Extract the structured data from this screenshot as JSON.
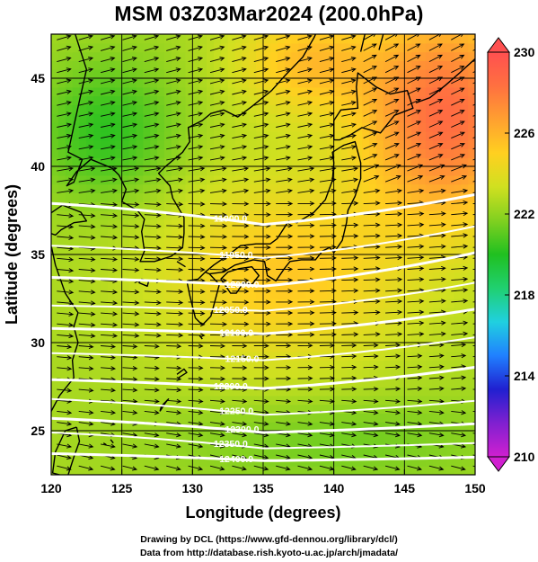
{
  "title": "MSM 03Z03Mar2024 (200.0hPa)",
  "credits": {
    "line1": "Drawing by DCL (https://www.gfd-dennou.org/library/dcl/)",
    "line2": "Data from http://database.rish.kyoto-u.ac.jp/arch/jmadata/"
  },
  "chart_data": {
    "type": "heatmap",
    "title": "MSM 03Z03Mar2024 (200.0hPa)",
    "xlabel": "Longitude (degrees)",
    "ylabel": "Latitude  (degrees)",
    "xlim": [
      120,
      150
    ],
    "ylim": [
      22.5,
      47.5
    ],
    "x_ticks": [
      120,
      125,
      130,
      135,
      140,
      145,
      150
    ],
    "y_ticks": [
      25,
      30,
      35,
      40,
      45
    ],
    "grid": true,
    "colorbar": {
      "position": "right",
      "min": 210,
      "max": 230,
      "tick_labels": [
        210,
        214,
        218,
        222,
        226,
        230
      ],
      "colors": [
        "#d020d0",
        "#8020d0",
        "#2020d0",
        "#2080ff",
        "#20d0e0",
        "#20d070",
        "#20c020",
        "#80d020",
        "#d0e020",
        "#ffd020",
        "#ffa030",
        "#ff7040",
        "#ff5050"
      ]
    },
    "contours": [
      {
        "label": "11900.0",
        "lat_at_lon": [
          [
            120,
            37.9
          ],
          [
            135,
            36.7
          ],
          [
            150,
            38.4
          ]
        ]
      },
      {
        "label": "11950.0",
        "lat_at_lon": [
          [
            120,
            35.5
          ],
          [
            135,
            34.8
          ],
          [
            150,
            36.6
          ]
        ]
      },
      {
        "label": "12000.0",
        "lat_at_lon": [
          [
            120,
            33.7
          ],
          [
            135,
            33.2
          ],
          [
            150,
            35.1
          ]
        ]
      },
      {
        "label": "12050.0",
        "lat_at_lon": [
          [
            120,
            32.1
          ],
          [
            135,
            31.8
          ],
          [
            150,
            33.4
          ]
        ]
      },
      {
        "label": "12100.0",
        "lat_at_lon": [
          [
            120,
            30.8
          ],
          [
            135,
            30.5
          ],
          [
            150,
            31.9
          ]
        ]
      },
      {
        "label": "12150.0",
        "lat_at_lon": [
          [
            120,
            29.4
          ],
          [
            135,
            29.0
          ],
          [
            150,
            30.3
          ]
        ]
      },
      {
        "label": "12200.0",
        "lat_at_lon": [
          [
            120,
            27.9
          ],
          [
            135,
            27.4
          ],
          [
            150,
            28.6
          ]
        ]
      },
      {
        "label": "12250.0",
        "lat_at_lon": [
          [
            120,
            26.8
          ],
          [
            135,
            25.9
          ],
          [
            150,
            26.7
          ]
        ]
      },
      {
        "label": "12300.0",
        "lat_at_lon": [
          [
            120,
            25.7
          ],
          [
            135,
            24.9
          ],
          [
            150,
            25.4
          ]
        ]
      },
      {
        "label": "12350.0",
        "lat_at_lon": [
          [
            120,
            24.9
          ],
          [
            135,
            24.0
          ],
          [
            150,
            24.3
          ]
        ]
      },
      {
        "label": "12400.0",
        "lat_at_lon": [
          [
            120,
            23.7
          ],
          [
            135,
            23.3
          ],
          [
            150,
            23.5
          ]
        ]
      }
    ]
  }
}
